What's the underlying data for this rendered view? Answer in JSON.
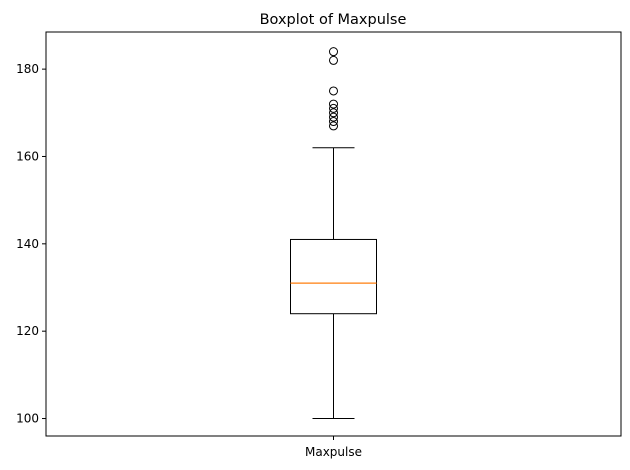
{
  "chart_data": {
    "type": "boxplot",
    "title": "Boxplot of Maxpulse",
    "xlabel": "",
    "ylabel": "",
    "categories": [
      "Maxpulse"
    ],
    "ylim": [
      96,
      188.5
    ],
    "yticks": [
      100,
      120,
      140,
      160,
      180
    ],
    "grid": false,
    "boxes": [
      {
        "name": "Maxpulse",
        "whisker_low": 100,
        "q1": 124,
        "median": 131,
        "q3": 141,
        "whisker_high": 162,
        "outliers": [
          167,
          168,
          169,
          170,
          171,
          172,
          175,
          182,
          184
        ]
      }
    ],
    "colors": {
      "box": "#000000",
      "median": "#ff7f0e",
      "outlier_edge": "#000000"
    }
  }
}
